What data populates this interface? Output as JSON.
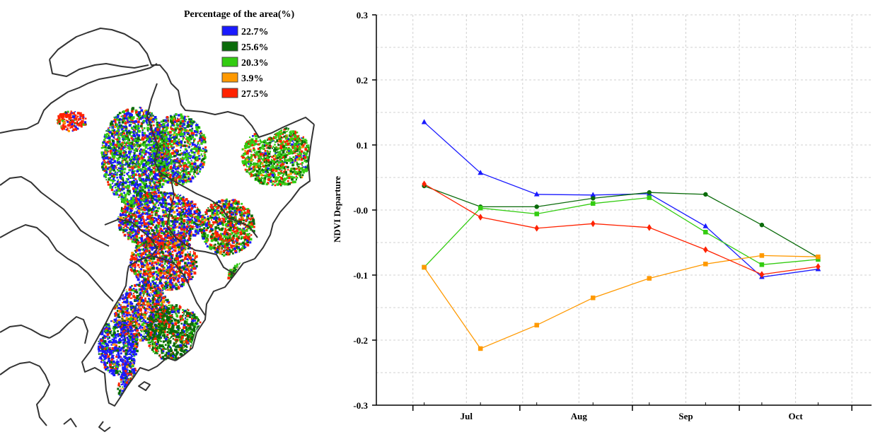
{
  "legend": {
    "title": "Percentage of the area(%)",
    "items": [
      {
        "label": "22.7%",
        "color": "#1a1aff"
      },
      {
        "label": "25.6%",
        "color": "#0a6b0a"
      },
      {
        "label": "20.3%",
        "color": "#33cc11"
      },
      {
        "label": "3.9%",
        "color": "#ff9900"
      },
      {
        "label": "27.5%",
        "color": "#ff2200"
      }
    ]
  },
  "chart_data": {
    "type": "line",
    "ylabel": "NDVI Departure",
    "xlabel": "",
    "ylim": [
      -0.3,
      0.3
    ],
    "yticks": [
      -0.3,
      -0.2,
      -0.1,
      0.0,
      0.1,
      0.2,
      0.3
    ],
    "ytick_labels": [
      "-0.3",
      "-0.2",
      "-0.1",
      "-0.0",
      "0.1",
      "0.2",
      "0.3"
    ],
    "x_positions": [
      1,
      2,
      3,
      4,
      5,
      6,
      7,
      8
    ],
    "month_labels": [
      {
        "label": "Jul",
        "pos": 1.75
      },
      {
        "label": "Aug",
        "pos": 3.75
      },
      {
        "label": "Sep",
        "pos": 5.65
      },
      {
        "label": "Oct",
        "pos": 7.6
      }
    ],
    "grid": true,
    "series": [
      {
        "color": "#1a1aff",
        "marker": "triangle",
        "values": [
          0.135,
          0.057,
          0.024,
          0.023,
          0.025,
          -0.025,
          -0.103,
          -0.091
        ]
      },
      {
        "color": "#0a6b0a",
        "marker": "circle",
        "values": [
          0.037,
          0.005,
          0.005,
          0.018,
          0.027,
          0.024,
          -0.023,
          -0.073
        ]
      },
      {
        "color": "#33cc11",
        "marker": "square",
        "values": [
          -0.088,
          0.003,
          -0.006,
          0.01,
          0.019,
          -0.034,
          -0.084,
          -0.076
        ]
      },
      {
        "color": "#ff9900",
        "marker": "square",
        "values": [
          -0.088,
          -0.213,
          -0.177,
          -0.135,
          -0.105,
          -0.083,
          -0.07,
          -0.072
        ]
      },
      {
        "color": "#ff2200",
        "marker": "diamond",
        "values": [
          0.04,
          -0.011,
          -0.028,
          -0.021,
          -0.027,
          -0.061,
          -0.099,
          -0.087
        ]
      }
    ]
  }
}
